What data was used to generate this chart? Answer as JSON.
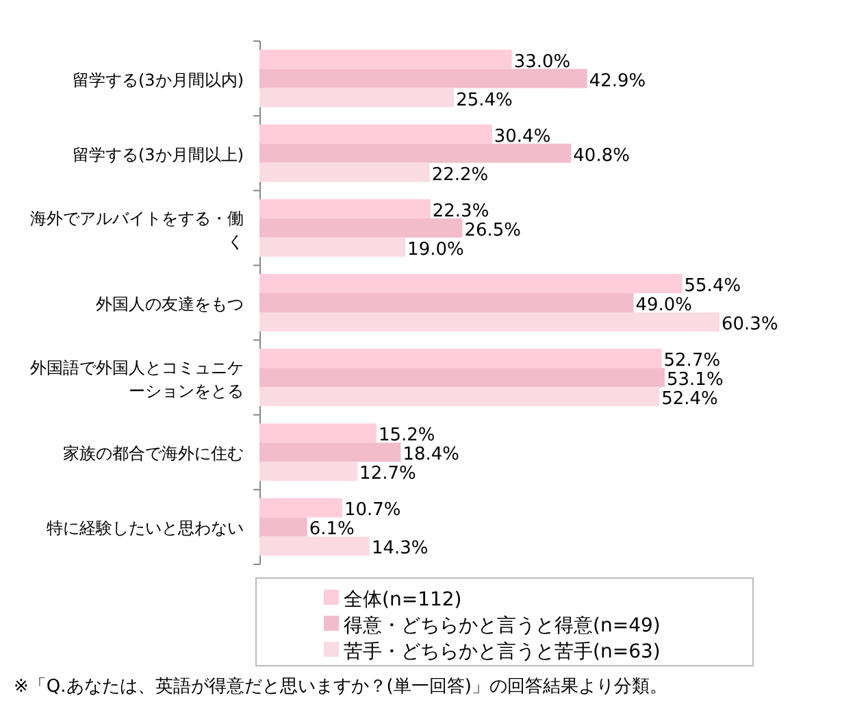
{
  "chart_data": {
    "type": "bar",
    "orientation": "horizontal",
    "categories": [
      "留学する(3か月間以内)",
      "留学する(3か月間以上)",
      "海外でアルバイトをする・働く",
      "外国人の友達をもつ",
      "外国語で外国人とコミュニケーションをとる",
      "家族の都合で海外に住む",
      "特に経験したいと思わない"
    ],
    "series": [
      {
        "name": "全体(n=112)",
        "color": "#ffccd9",
        "values": [
          33.0,
          30.4,
          22.3,
          55.4,
          52.7,
          15.2,
          10.7
        ],
        "value_labels": [
          "33.0%",
          "30.4%",
          "22.3%",
          "55.4%",
          "52.7%",
          "15.2%",
          "10.7%"
        ]
      },
      {
        "name": "得意・どちらかと言うと得意(n=49)",
        "color": "#f2bccb",
        "values": [
          42.9,
          40.8,
          26.5,
          49.0,
          53.1,
          18.4,
          6.1
        ],
        "value_labels": [
          "42.9%",
          "40.8%",
          "26.5%",
          "49.0%",
          "53.1%",
          "18.4%",
          "6.1%"
        ]
      },
      {
        "name": "苦手・どちらかと言うと苦手(n=63)",
        "color": "#fadbe4",
        "values": [
          25.4,
          22.2,
          19.0,
          60.3,
          52.4,
          12.7,
          14.3
        ],
        "value_labels": [
          "25.4%",
          "22.2%",
          "19.0%",
          "60.3%",
          "52.4%",
          "12.7%",
          "14.3%"
        ]
      }
    ],
    "legend": "bottom",
    "annotations": [
      "※「Q.あなたは、英語が得意だと思いますか？(単一回答)」の回答結果より分類。"
    ]
  }
}
